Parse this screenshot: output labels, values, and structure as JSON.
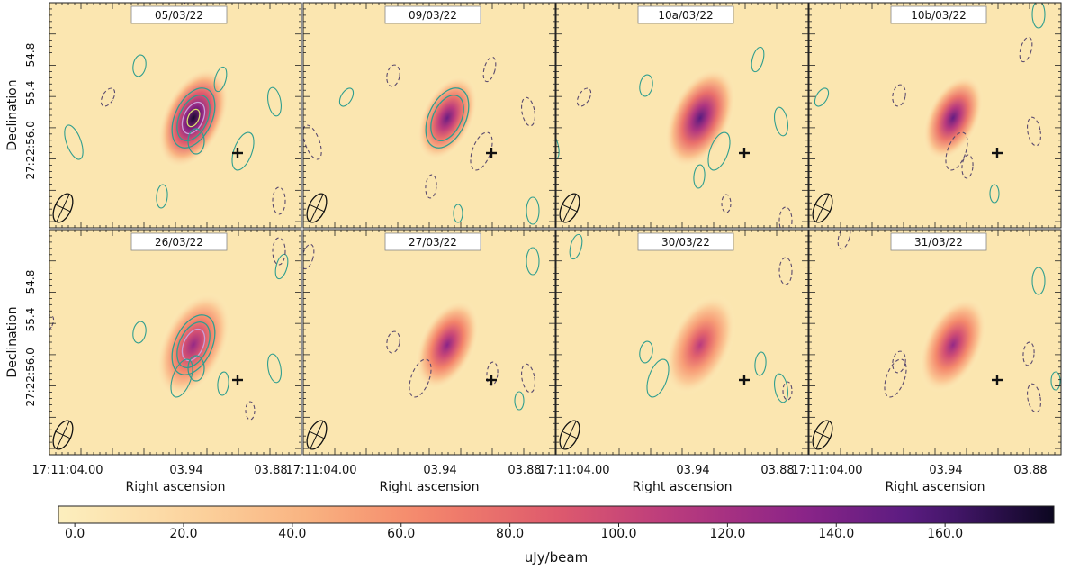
{
  "figure": {
    "panels": [
      {
        "date": "05/03/22",
        "peak": 0.98,
        "spread": 1.0,
        "contours": [
          1,
          2,
          3,
          4
        ],
        "lobe": true
      },
      {
        "date": "09/03/22",
        "peak": 0.82,
        "spread": 0.85,
        "contours": [
          1,
          2
        ],
        "lobe": false
      },
      {
        "date": "10a/03/22",
        "peak": 0.86,
        "spread": 1.0,
        "contours": [],
        "lobe": false
      },
      {
        "date": "10b/03/22",
        "peak": 0.83,
        "spread": 0.85,
        "contours": [],
        "lobe": false
      },
      {
        "date": "26/03/22",
        "peak": 0.72,
        "spread": 1.05,
        "contours": [
          1,
          2,
          3
        ],
        "lobe": true
      },
      {
        "date": "27/03/22",
        "peak": 0.75,
        "spread": 0.9,
        "contours": [],
        "lobe": false
      },
      {
        "date": "30/03/22",
        "peak": 0.62,
        "spread": 1.0,
        "contours": [],
        "lobe": false
      },
      {
        "date": "31/03/22",
        "peak": 0.72,
        "spread": 0.95,
        "contours": [],
        "lobe": false
      }
    ],
    "y_axis": {
      "label": "Declination",
      "ticks": [
        "54.8",
        "55.4",
        "-27:22:56.0"
      ]
    },
    "x_axis": {
      "label": "Right ascension",
      "ticks": [
        "17:11:04.00",
        "03.94",
        "03.88"
      ]
    },
    "colorbar": {
      "label": "uJy/beam",
      "min": -3,
      "max": 180,
      "ticks": [
        "0.0",
        "20.0",
        "40.0",
        "60.0",
        "80.0",
        "100.0",
        "120.0",
        "140.0",
        "160.0"
      ],
      "tick_values": [
        0,
        20,
        40,
        60,
        80,
        100,
        120,
        140,
        160
      ],
      "colormap": "magma_r"
    },
    "contour_colors": {
      "positive": "#2f9e8f",
      "negative": "#5a4a6e",
      "high": "#d8e26a"
    }
  }
}
